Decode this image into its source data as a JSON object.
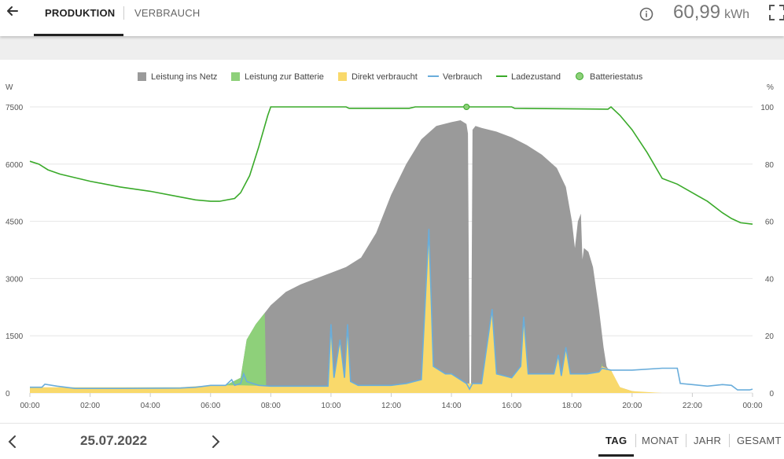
{
  "header": {
    "tab_active": "PRODUKTION",
    "tab_inactive": "VERBRAUCH",
    "total_value": "60,99",
    "total_unit": "kWh"
  },
  "footer": {
    "date": "25.07.2022",
    "periods": [
      "TAG",
      "MONAT",
      "JAHR",
      "GESAMT"
    ]
  },
  "colors": {
    "netz": "#9a9a9a",
    "batterie": "#8ed07a",
    "direkt": "#f9d96b",
    "verbrauch": "#69addb",
    "ladezustand": "#3aaa2a",
    "batteriestatus": "#8ed07a"
  },
  "chart_data": {
    "type": "area",
    "legend": [
      "Leistung ins Netz",
      "Leistung zur Batterie",
      "Direkt verbraucht",
      "Verbrauch",
      "Ladezustand",
      "Batteriestatus"
    ],
    "legend_position": "top-center",
    "y_left_label": "W",
    "y_right_label": "%",
    "y_left_ticks": [
      "7500",
      "6000",
      "4500",
      "3000",
      "1500",
      "0"
    ],
    "y_right_ticks": [
      "100",
      "80",
      "60",
      "40",
      "20",
      "0"
    ],
    "x_ticks": [
      "00:00",
      "02:00",
      "04:00",
      "06:00",
      "08:00",
      "10:00",
      "12:00",
      "14:00",
      "16:00",
      "18:00",
      "20:00",
      "22:00",
      "00:00"
    ],
    "y_left_range": [
      0,
      7500
    ],
    "y_right_range": [
      0,
      100
    ],
    "grid": true,
    "pv_total_w": [
      [
        0,
        0
      ],
      [
        5.6,
        0
      ],
      [
        6.0,
        60
      ],
      [
        6.5,
        200
      ],
      [
        7.0,
        400
      ],
      [
        7.2,
        1400
      ],
      [
        7.5,
        1800
      ],
      [
        7.8,
        2100
      ],
      [
        8.0,
        2300
      ],
      [
        8.5,
        2650
      ],
      [
        9.0,
        2850
      ],
      [
        9.5,
        3000
      ],
      [
        10.0,
        3150
      ],
      [
        10.5,
        3300
      ],
      [
        11.0,
        3550
      ],
      [
        11.5,
        4200
      ],
      [
        12.0,
        5200
      ],
      [
        12.5,
        6000
      ],
      [
        13.0,
        6650
      ],
      [
        13.5,
        7000
      ],
      [
        14.0,
        7100
      ],
      [
        14.3,
        7150
      ],
      [
        14.5,
        7050
      ],
      [
        14.55,
        6800
      ],
      [
        14.6,
        100
      ],
      [
        14.65,
        100
      ],
      [
        14.7,
        6900
      ],
      [
        14.8,
        7000
      ],
      [
        15.0,
        6950
      ],
      [
        15.5,
        6850
      ],
      [
        16.0,
        6700
      ],
      [
        16.5,
        6500
      ],
      [
        17.0,
        6250
      ],
      [
        17.5,
        5900
      ],
      [
        17.8,
        5400
      ],
      [
        18.0,
        4500
      ],
      [
        18.1,
        3800
      ],
      [
        18.2,
        4500
      ],
      [
        18.3,
        4700
      ],
      [
        18.35,
        3500
      ],
      [
        18.4,
        3800
      ],
      [
        18.55,
        3700
      ],
      [
        18.7,
        3300
      ],
      [
        18.9,
        2200
      ],
      [
        19.05,
        1200
      ],
      [
        19.15,
        700
      ],
      [
        19.3,
        500
      ],
      [
        19.6,
        150
      ],
      [
        20.0,
        50
      ],
      [
        20.5,
        0
      ],
      [
        24,
        0
      ]
    ],
    "battery_charge_w": [
      [
        0,
        0
      ],
      [
        5.6,
        0
      ],
      [
        6.0,
        60
      ],
      [
        6.5,
        200
      ],
      [
        7.0,
        400
      ],
      [
        7.2,
        1400
      ],
      [
        7.5,
        1800
      ],
      [
        7.8,
        2100
      ],
      [
        7.85,
        0
      ],
      [
        18.9,
        0
      ],
      [
        19.0,
        800
      ],
      [
        19.1,
        200
      ],
      [
        19.2,
        0
      ],
      [
        24,
        0
      ]
    ],
    "direct_consumed_w": [
      [
        0,
        150
      ],
      [
        5.0,
        150
      ],
      [
        5.6,
        180
      ],
      [
        6.0,
        200
      ],
      [
        7.0,
        200
      ],
      [
        8.0,
        180
      ],
      [
        9.0,
        180
      ],
      [
        9.9,
        180
      ],
      [
        10.0,
        1800
      ],
      [
        10.1,
        400
      ],
      [
        10.3,
        1400
      ],
      [
        10.45,
        400
      ],
      [
        10.55,
        1800
      ],
      [
        10.65,
        300
      ],
      [
        10.9,
        200
      ],
      [
        11.5,
        200
      ],
      [
        12.0,
        200
      ],
      [
        12.5,
        250
      ],
      [
        13.0,
        350
      ],
      [
        13.25,
        4300
      ],
      [
        13.4,
        700
      ],
      [
        13.8,
        500
      ],
      [
        14.0,
        500
      ],
      [
        14.5,
        250
      ],
      [
        15.0,
        250
      ],
      [
        15.35,
        2200
      ],
      [
        15.5,
        500
      ],
      [
        16.0,
        400
      ],
      [
        16.3,
        700
      ],
      [
        16.4,
        2000
      ],
      [
        16.55,
        500
      ],
      [
        17.0,
        500
      ],
      [
        17.4,
        500
      ],
      [
        17.55,
        1000
      ],
      [
        17.65,
        450
      ],
      [
        17.8,
        1200
      ],
      [
        17.95,
        500
      ],
      [
        18.5,
        500
      ],
      [
        18.9,
        550
      ],
      [
        19.0,
        700
      ],
      [
        19.3,
        600
      ],
      [
        19.6,
        150
      ],
      [
        20.0,
        50
      ],
      [
        21.0,
        0
      ],
      [
        24,
        0
      ]
    ],
    "verbrauch_w": [
      [
        0,
        150
      ],
      [
        0.4,
        150
      ],
      [
        0.5,
        230
      ],
      [
        0.9,
        180
      ],
      [
        1.5,
        120
      ],
      [
        3.0,
        120
      ],
      [
        5.0,
        130
      ],
      [
        5.5,
        150
      ],
      [
        6.0,
        200
      ],
      [
        6.5,
        200
      ],
      [
        6.7,
        350
      ],
      [
        6.8,
        200
      ],
      [
        7.0,
        250
      ],
      [
        7.1,
        500
      ],
      [
        7.2,
        300
      ],
      [
        7.6,
        200
      ],
      [
        8.0,
        180
      ],
      [
        9.0,
        180
      ],
      [
        9.9,
        180
      ],
      [
        10.0,
        1800
      ],
      [
        10.1,
        400
      ],
      [
        10.3,
        1400
      ],
      [
        10.45,
        400
      ],
      [
        10.55,
        1800
      ],
      [
        10.65,
        300
      ],
      [
        10.9,
        200
      ],
      [
        11.5,
        200
      ],
      [
        12.0,
        200
      ],
      [
        12.5,
        250
      ],
      [
        13.0,
        350
      ],
      [
        13.25,
        4300
      ],
      [
        13.4,
        700
      ],
      [
        13.8,
        500
      ],
      [
        14.0,
        500
      ],
      [
        14.5,
        250
      ],
      [
        14.6,
        100
      ],
      [
        14.7,
        250
      ],
      [
        15.0,
        250
      ],
      [
        15.35,
        2200
      ],
      [
        15.5,
        500
      ],
      [
        16.0,
        400
      ],
      [
        16.3,
        700
      ],
      [
        16.4,
        2000
      ],
      [
        16.55,
        500
      ],
      [
        17.0,
        500
      ],
      [
        17.4,
        500
      ],
      [
        17.55,
        1000
      ],
      [
        17.65,
        450
      ],
      [
        17.8,
        1200
      ],
      [
        17.95,
        500
      ],
      [
        18.5,
        500
      ],
      [
        18.9,
        550
      ],
      [
        19.0,
        650
      ],
      [
        19.3,
        600
      ],
      [
        19.5,
        600
      ],
      [
        19.6,
        600
      ],
      [
        20.0,
        600
      ],
      [
        21.0,
        650
      ],
      [
        21.5,
        650
      ],
      [
        21.6,
        250
      ],
      [
        22.0,
        220
      ],
      [
        22.5,
        180
      ],
      [
        23.0,
        220
      ],
      [
        23.3,
        200
      ],
      [
        23.5,
        80
      ],
      [
        23.9,
        80
      ],
      [
        24.0,
        100
      ]
    ],
    "ladezustand_pct": [
      [
        0,
        81
      ],
      [
        0.3,
        80
      ],
      [
        0.6,
        78
      ],
      [
        1.0,
        76.5
      ],
      [
        2.0,
        74
      ],
      [
        3.0,
        72
      ],
      [
        4.0,
        70.5
      ],
      [
        5.0,
        68.5
      ],
      [
        5.5,
        67.5
      ],
      [
        6.0,
        67
      ],
      [
        6.3,
        67
      ],
      [
        6.8,
        68
      ],
      [
        7.0,
        70
      ],
      [
        7.3,
        76
      ],
      [
        7.6,
        86
      ],
      [
        7.9,
        97
      ],
      [
        8.0,
        100
      ],
      [
        10.5,
        100
      ],
      [
        10.6,
        99.5
      ],
      [
        12.6,
        99.5
      ],
      [
        12.8,
        100
      ],
      [
        16.0,
        100
      ],
      [
        16.1,
        99.5
      ],
      [
        19.2,
        99.2
      ],
      [
        19.3,
        100
      ],
      [
        19.6,
        97
      ],
      [
        20.0,
        92
      ],
      [
        20.5,
        84
      ],
      [
        21.0,
        75
      ],
      [
        21.5,
        73
      ],
      [
        22.0,
        70
      ],
      [
        22.5,
        67
      ],
      [
        23.0,
        63
      ],
      [
        23.3,
        61
      ],
      [
        23.6,
        59.5
      ],
      [
        24.0,
        59
      ]
    ],
    "batteriestatus_pct": [
      [
        14.5,
        100
      ]
    ]
  }
}
